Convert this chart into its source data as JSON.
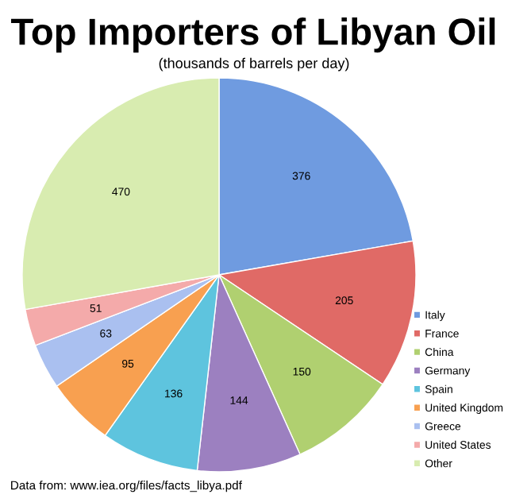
{
  "chart_data": {
    "type": "pie",
    "title": "Top Importers of Libyan Oil",
    "subtitle": "(thousands of barrels per day)",
    "categories": [
      "Italy",
      "France",
      "China",
      "Germany",
      "Spain",
      "United Kingdom",
      "Greece",
      "United States",
      "Other"
    ],
    "values": [
      376,
      205,
      150,
      144,
      136,
      95,
      63,
      51,
      470
    ],
    "colors": [
      "#6f9be0",
      "#e06a66",
      "#b0d070",
      "#9c80c0",
      "#5ec4de",
      "#f8a050",
      "#aac0f0",
      "#f4aaaa",
      "#d8ecb0"
    ],
    "data_labels": true,
    "legend": "bottom right",
    "annotations": [
      "Data from: www.iea.org/files/facts_libya.pdf"
    ]
  }
}
